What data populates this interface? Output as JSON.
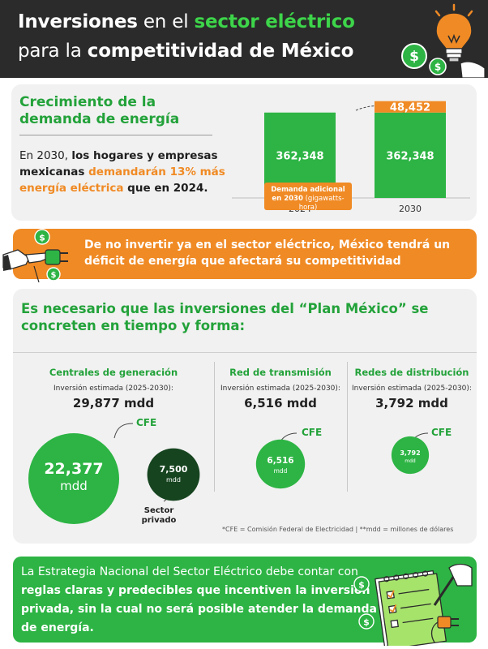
{
  "header": {
    "line1_a": "Inversiones",
    "line1_b": " en el ",
    "line1_c": "sector eléctrico",
    "line2_a": "para la ",
    "line2_b": "competitividad de México",
    "accent_color": "#3dd54a",
    "bg_color": "#2b2b2b",
    "icons": [
      "lightbulb-icon",
      "dollar-coin-icon"
    ]
  },
  "demand": {
    "title": "Crecimiento de la demanda de energía",
    "text_a": "En 2030, ",
    "text_b": "los hogares y empresas mexicanas ",
    "text_c": "demandarán 13% más energía eléctrica",
    "text_d": " que en 2024.",
    "callout_a": "Demanda adicional",
    "callout_b": "en 2030",
    "callout_c": "(gigawatts-hora)"
  },
  "chart_data": {
    "type": "bar",
    "stacked": true,
    "categories": [
      "2024",
      "2030"
    ],
    "series": [
      {
        "values": [
          362348,
          362348
        ],
        "labels": [
          "362,348",
          "362,348"
        ],
        "color": "#2db444"
      },
      {
        "values": [
          0,
          48452
        ],
        "labels": [
          "",
          "48,452"
        ],
        "color": "#f08a24"
      }
    ],
    "ylim": [
      0,
      420000
    ],
    "grid": false
  },
  "warning": {
    "text": "De no invertir ya en el sector eléctrico, México tendrá un déficit de energía que afectará su competitividad",
    "color": "#f08a24",
    "icons": [
      "hand-plug-icon",
      "dollar-coin-icon"
    ]
  },
  "plan": {
    "title": "Es necesario que las inversiones del “Plan México” se concreten en tiempo y forma:",
    "columns": [
      {
        "heading": "Centrales de generación",
        "sub": "Inversión estimada (2025-2030):",
        "amount": "29,877 mdd",
        "cfe_label": "CFE",
        "cfe_value": "22,377",
        "cfe_unit": "mdd",
        "cfe_amount": 22377,
        "private_label": "Sector privado",
        "private_value": "7,500",
        "private_unit": "mdd",
        "private_amount": 7500
      },
      {
        "heading": "Red de transmisión",
        "sub": "Inversión estimada (2025-2030):",
        "amount": "6,516 mdd",
        "cfe_label": "CFE",
        "cfe_value": "6,516",
        "cfe_unit": "mdd",
        "cfe_amount": 6516
      },
      {
        "heading": "Redes de distribución",
        "sub": "Inversión estimada (2025-2030):",
        "amount": "3,792 mdd",
        "cfe_label": "CFE",
        "cfe_value": "3,792",
        "cfe_unit": "mdd",
        "cfe_amount": 3792
      }
    ],
    "footnote": "*CFE = Comisión Federal de Electricidad   |   **mdd = millones de dólares"
  },
  "conclusion": {
    "text_a": "La Estrategia Nacional del Sector Eléctrico debe contar con ",
    "text_b": "reglas claras y predecibles que incentiven la inversión privada, sin la cual no será posible atender la demanda de energía.",
    "color": "#2db444",
    "icons": [
      "notepad-checklist-icon",
      "hand-pen-icon",
      "plug-icon",
      "dollar-coin-icon"
    ]
  }
}
